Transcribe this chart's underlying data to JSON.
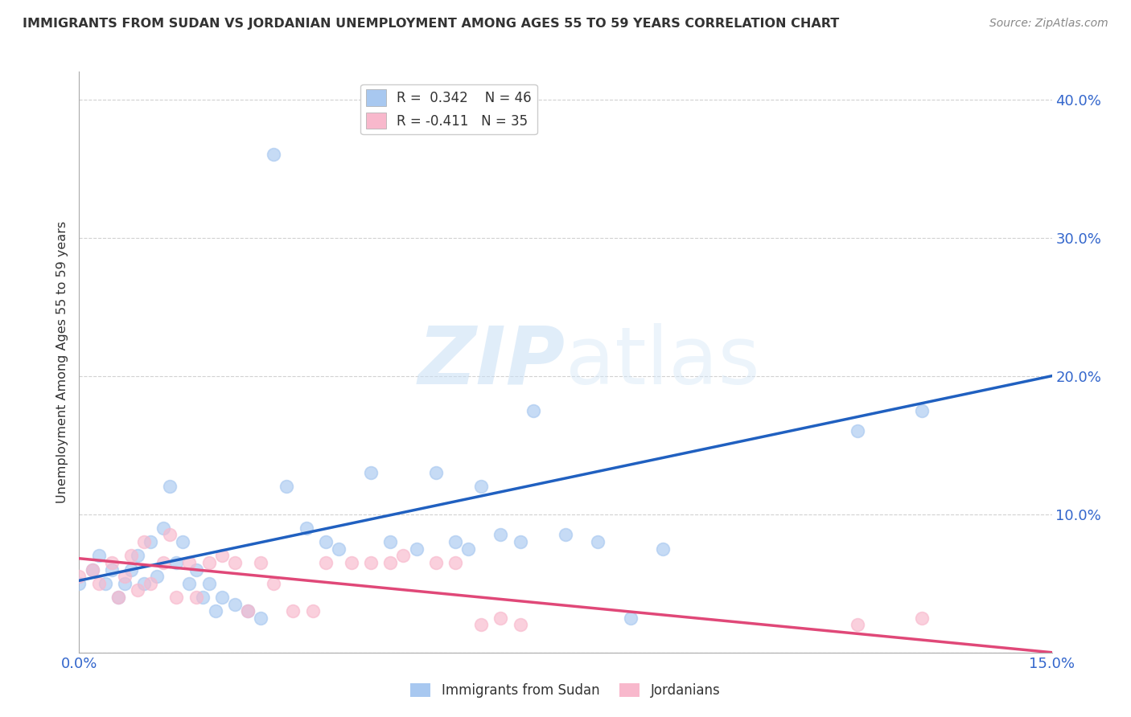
{
  "title": "IMMIGRANTS FROM SUDAN VS JORDANIAN UNEMPLOYMENT AMONG AGES 55 TO 59 YEARS CORRELATION CHART",
  "source": "Source: ZipAtlas.com",
  "ylabel": "Unemployment Among Ages 55 to 59 years",
  "xlim": [
    0.0,
    0.15
  ],
  "ylim": [
    0.0,
    0.42
  ],
  "blue_color": "#a8c8f0",
  "pink_color": "#f8b8cc",
  "blue_line_color": "#2060c0",
  "pink_line_color": "#e04878",
  "watermark_zip": "ZIP",
  "watermark_atlas": "atlas",
  "blue_scatter_x": [
    0.0,
    0.002,
    0.003,
    0.004,
    0.005,
    0.006,
    0.007,
    0.008,
    0.009,
    0.01,
    0.011,
    0.012,
    0.013,
    0.014,
    0.015,
    0.016,
    0.017,
    0.018,
    0.019,
    0.02,
    0.021,
    0.022,
    0.024,
    0.026,
    0.028,
    0.03,
    0.032,
    0.035,
    0.038,
    0.04,
    0.045,
    0.048,
    0.052,
    0.055,
    0.058,
    0.06,
    0.062,
    0.065,
    0.068,
    0.07,
    0.075,
    0.08,
    0.085,
    0.09,
    0.12,
    0.13
  ],
  "blue_scatter_y": [
    0.05,
    0.06,
    0.07,
    0.05,
    0.06,
    0.04,
    0.05,
    0.06,
    0.07,
    0.05,
    0.08,
    0.055,
    0.09,
    0.12,
    0.065,
    0.08,
    0.05,
    0.06,
    0.04,
    0.05,
    0.03,
    0.04,
    0.035,
    0.03,
    0.025,
    0.36,
    0.12,
    0.09,
    0.08,
    0.075,
    0.13,
    0.08,
    0.075,
    0.13,
    0.08,
    0.075,
    0.12,
    0.085,
    0.08,
    0.175,
    0.085,
    0.08,
    0.025,
    0.075,
    0.16,
    0.175
  ],
  "pink_scatter_x": [
    0.0,
    0.002,
    0.003,
    0.005,
    0.006,
    0.007,
    0.008,
    0.009,
    0.01,
    0.011,
    0.013,
    0.014,
    0.015,
    0.017,
    0.018,
    0.02,
    0.022,
    0.024,
    0.026,
    0.028,
    0.03,
    0.033,
    0.036,
    0.038,
    0.042,
    0.045,
    0.048,
    0.05,
    0.055,
    0.058,
    0.062,
    0.065,
    0.068,
    0.12,
    0.13
  ],
  "pink_scatter_y": [
    0.055,
    0.06,
    0.05,
    0.065,
    0.04,
    0.055,
    0.07,
    0.045,
    0.08,
    0.05,
    0.065,
    0.085,
    0.04,
    0.065,
    0.04,
    0.065,
    0.07,
    0.065,
    0.03,
    0.065,
    0.05,
    0.03,
    0.03,
    0.065,
    0.065,
    0.065,
    0.065,
    0.07,
    0.065,
    0.065,
    0.02,
    0.025,
    0.02,
    0.02,
    0.025
  ],
  "blue_line_x0": 0.0,
  "blue_line_x1": 0.15,
  "blue_line_y0": 0.052,
  "blue_line_y1": 0.2,
  "pink_line_x0": 0.0,
  "pink_line_x1": 0.15,
  "pink_line_y0": 0.068,
  "pink_line_y1": 0.0
}
